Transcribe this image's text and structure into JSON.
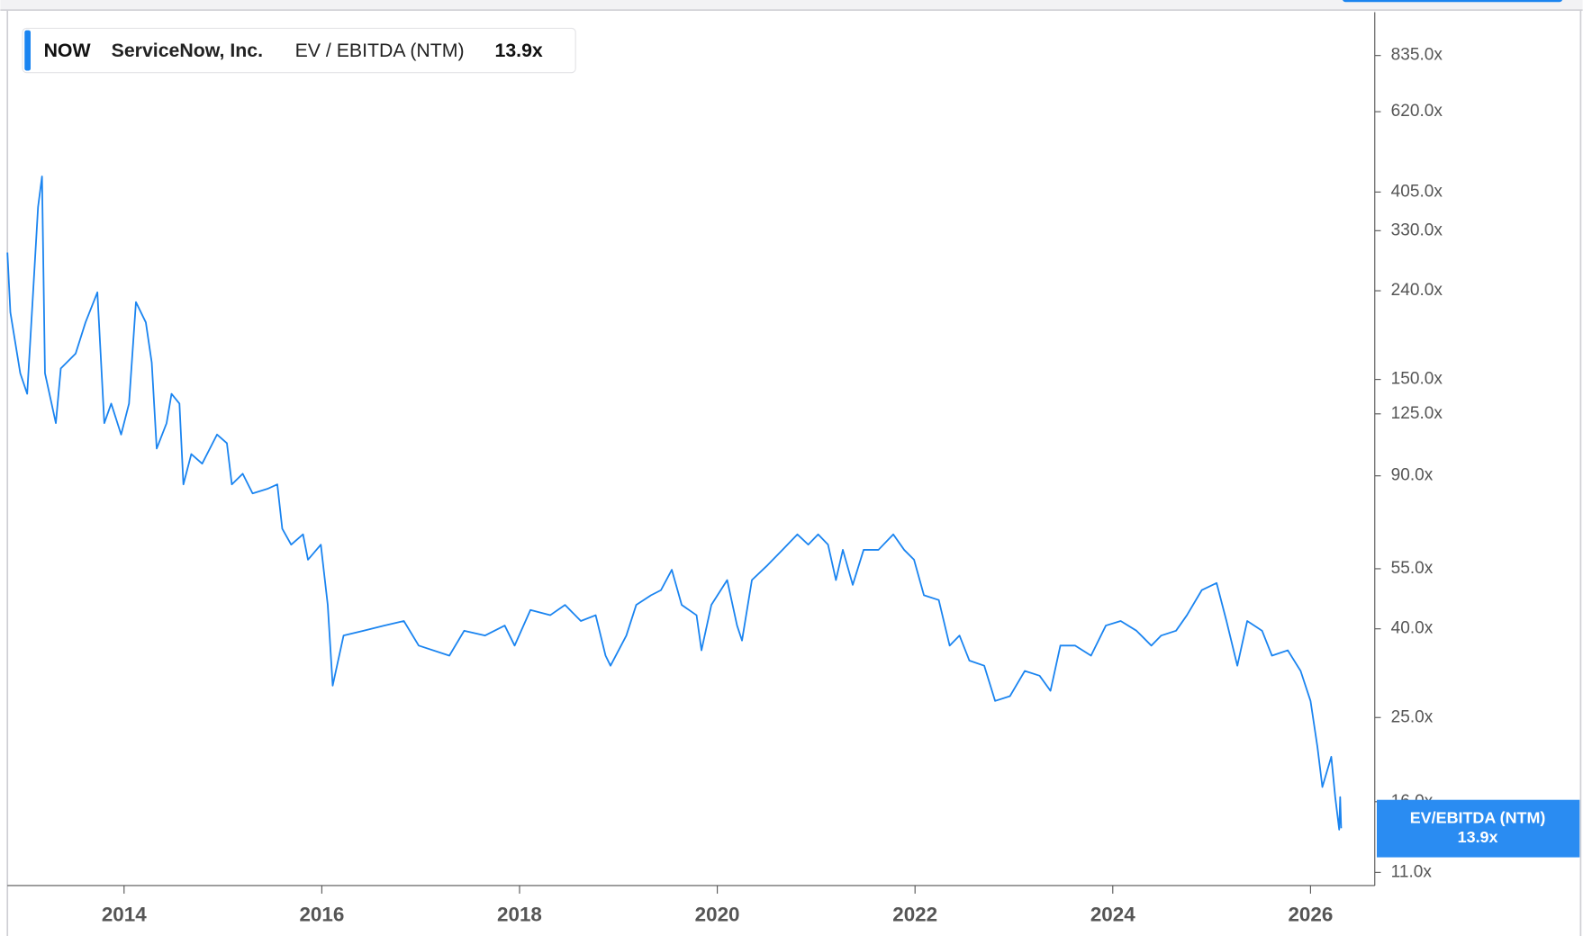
{
  "chart_data": {
    "type": "line",
    "ticker": "NOW",
    "company": "ServiceNow, Inc.",
    "metric": "EV / EBITDA (NTM)",
    "current_label": "13.9x",
    "badge_label": "EV/EBITDA (NTM)",
    "log_scale": true,
    "xlim": [
      2012.82,
      2026.65
    ],
    "xticks": [
      2014,
      2016,
      2018,
      2020,
      2022,
      2024,
      2026
    ],
    "ylim": [
      10.26,
      1051
    ],
    "yticks": [
      {
        "value": 835,
        "label": "835.0x"
      },
      {
        "value": 620,
        "label": "620.0x"
      },
      {
        "value": 405,
        "label": "405.0x"
      },
      {
        "value": 330,
        "label": "330.0x"
      },
      {
        "value": 240,
        "label": "240.0x"
      },
      {
        "value": 150,
        "label": "150.0x"
      },
      {
        "value": 125,
        "label": "125.0x"
      },
      {
        "value": 90,
        "label": "90.0x"
      },
      {
        "value": 55,
        "label": "55.0x"
      },
      {
        "value": 40,
        "label": "40.0x"
      },
      {
        "value": 25,
        "label": "25.0x"
      },
      {
        "value": 16,
        "label": "16.0x"
      },
      {
        "value": 11,
        "label": "11.0x"
      }
    ],
    "x": [
      2012.82,
      2012.85,
      2012.95,
      2013.02,
      2013.08,
      2013.13,
      2013.17,
      2013.2,
      2013.31,
      2013.36,
      2013.51,
      2013.61,
      2013.73,
      2013.8,
      2013.87,
      2013.97,
      2014.05,
      2014.12,
      2014.22,
      2014.28,
      2014.33,
      2014.43,
      2014.48,
      2014.56,
      2014.6,
      2014.68,
      2014.79,
      2014.94,
      2015.04,
      2015.09,
      2015.2,
      2015.3,
      2015.45,
      2015.55,
      2015.6,
      2015.69,
      2015.81,
      2015.86,
      2015.99,
      2016.06,
      2016.11,
      2016.22,
      2016.42,
      2016.63,
      2016.83,
      2016.98,
      2017.29,
      2017.44,
      2017.65,
      2017.85,
      2017.95,
      2018.11,
      2018.31,
      2018.46,
      2018.62,
      2018.77,
      2018.87,
      2018.92,
      2019.08,
      2019.18,
      2019.33,
      2019.43,
      2019.54,
      2019.64,
      2019.79,
      2019.84,
      2019.94,
      2020.1,
      2020.2,
      2020.25,
      2020.35,
      2020.51,
      2020.66,
      2020.81,
      2020.92,
      2021.02,
      2021.12,
      2021.2,
      2021.27,
      2021.37,
      2021.48,
      2021.63,
      2021.78,
      2021.89,
      2021.99,
      2022.09,
      2022.24,
      2022.35,
      2022.45,
      2022.55,
      2022.7,
      2022.81,
      2022.96,
      2023.11,
      2023.26,
      2023.37,
      2023.47,
      2023.62,
      2023.78,
      2023.93,
      2024.08,
      2024.24,
      2024.39,
      2024.49,
      2024.64,
      2024.75,
      2024.9,
      2025.05,
      2025.15,
      2025.26,
      2025.36,
      2025.51,
      2025.61,
      2025.77,
      2025.9,
      2026.0,
      2026.07,
      2026.12,
      2026.21,
      2026.25,
      2026.29,
      2026.3,
      2026.31
    ],
    "series": [
      {
        "name": "EV / EBITDA (NTM)",
        "color": "#1a84f0",
        "values": [
          294,
          214,
          155,
          139,
          238,
          374,
          440,
          155,
          119,
          159,
          172,
          203,
          238,
          119,
          132,
          112,
          132,
          226,
          203,
          164,
          104,
          119,
          139,
          132,
          86,
          101,
          96,
          112,
          107,
          86,
          91,
          82,
          84,
          86,
          68,
          62.5,
          66,
          57.7,
          62.5,
          45.4,
          29.6,
          38.6,
          39.6,
          40.7,
          41.7,
          36.6,
          34.7,
          39.6,
          38.6,
          40.7,
          36.6,
          44.2,
          43.0,
          45.4,
          41.7,
          43.0,
          34.7,
          32.9,
          38.6,
          45.4,
          47.8,
          49.1,
          54.7,
          45.4,
          43.0,
          35.7,
          45.4,
          51.8,
          40.7,
          37.6,
          51.8,
          56.1,
          60.8,
          66,
          62.5,
          66,
          62.5,
          51.8,
          60.8,
          50.5,
          60.8,
          60.8,
          66,
          60.8,
          57.7,
          47.8,
          46.6,
          36.6,
          38.6,
          33.8,
          32.9,
          27.3,
          28.0,
          32.0,
          31.2,
          28.8,
          36.6,
          36.6,
          34.7,
          40.7,
          41.7,
          39.6,
          36.6,
          38.6,
          39.6,
          43.0,
          49.1,
          51.0,
          41.7,
          32.9,
          41.7,
          39.6,
          34.7,
          35.7,
          32.0,
          27.3,
          21.4,
          17.3,
          20.3,
          16.4,
          13.8,
          16.4,
          13.9
        ]
      }
    ]
  }
}
